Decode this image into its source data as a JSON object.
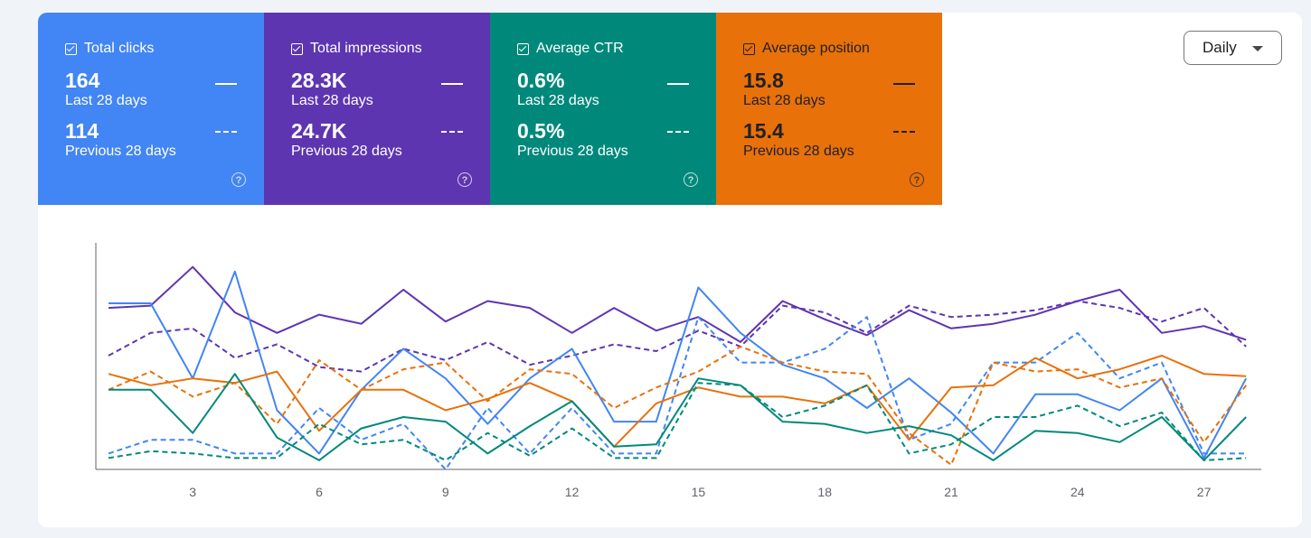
{
  "dropdown": {
    "value": "Daily"
  },
  "metrics": [
    {
      "key": "clicks",
      "label": "Total clicks",
      "current_value": "164",
      "current_period": "Last 28 days",
      "previous_value": "114",
      "previous_period": "Previous 28 days",
      "color": "#4285f4",
      "text_color": "#ffffff"
    },
    {
      "key": "impressions",
      "label": "Total impressions",
      "current_value": "28.3K",
      "current_period": "Last 28 days",
      "previous_value": "24.7K",
      "previous_period": "Previous 28 days",
      "color": "#5e35b1",
      "text_color": "#ffffff"
    },
    {
      "key": "ctr",
      "label": "Average CTR",
      "current_value": "0.6%",
      "current_period": "Last 28 days",
      "previous_value": "0.5%",
      "previous_period": "Previous 28 days",
      "color": "#00897b",
      "text_color": "#ffffff"
    },
    {
      "key": "position",
      "label": "Average position",
      "current_value": "15.8",
      "current_period": "Last 28 days",
      "previous_value": "15.4",
      "previous_period": "Previous 28 days",
      "color": "#e8710a",
      "text_color": "#202124"
    }
  ],
  "chart_data": {
    "type": "line",
    "x": [
      1,
      2,
      3,
      4,
      5,
      6,
      7,
      8,
      9,
      10,
      11,
      12,
      13,
      14,
      15,
      16,
      17,
      18,
      19,
      20,
      21,
      22,
      23,
      24,
      25,
      26,
      27,
      28
    ],
    "x_ticks": [
      "3",
      "6",
      "9",
      "12",
      "15",
      "18",
      "21",
      "24",
      "27"
    ],
    "x_tick_values": [
      3,
      6,
      9,
      12,
      15,
      18,
      21,
      24,
      27
    ],
    "ylim": [
      0,
      100
    ],
    "grid": false,
    "series": [
      {
        "metric": "impressions",
        "period": "current",
        "color": "#5e35b1",
        "dashed": false,
        "values": [
          71,
          72,
          89,
          69,
          60,
          68,
          64,
          79,
          65,
          74,
          71,
          60,
          71,
          61,
          67,
          56,
          74,
          66,
          59,
          70,
          62,
          64,
          68,
          74,
          79,
          60,
          63,
          57
        ]
      },
      {
        "metric": "impressions",
        "period": "previous",
        "color": "#5e35b1",
        "dashed": true,
        "values": [
          50,
          60,
          62,
          49,
          55,
          45,
          43,
          53,
          48,
          56,
          46,
          50,
          55,
          52,
          61,
          54,
          72,
          69,
          60,
          72,
          67,
          68,
          70,
          74,
          71,
          65,
          71,
          54
        ]
      },
      {
        "metric": "clicks",
        "period": "current",
        "color": "#4285f4",
        "dashed": false,
        "values": [
          73,
          73,
          40,
          87,
          26,
          7,
          35,
          53,
          40,
          20,
          40,
          53,
          21,
          21,
          80,
          60,
          46,
          40,
          27,
          40,
          25,
          7,
          33,
          33,
          26,
          40,
          5,
          40
        ]
      },
      {
        "metric": "clicks",
        "period": "previous",
        "color": "#4285f4",
        "dashed": true,
        "values": [
          7,
          13,
          13,
          7,
          7,
          27,
          13,
          20,
          0,
          27,
          7,
          27,
          7,
          7,
          67,
          47,
          47,
          53,
          67,
          13,
          20,
          47,
          47,
          60,
          40,
          47,
          7,
          7
        ]
      },
      {
        "metric": "position",
        "period": "current",
        "color": "#e8710a",
        "dashed": false,
        "values": [
          42,
          37,
          40,
          38,
          43,
          17,
          35,
          35,
          26,
          31,
          38,
          30,
          10,
          29,
          36,
          32,
          32,
          29,
          37,
          13,
          36,
          37,
          49,
          40,
          44,
          50,
          42,
          41
        ]
      },
      {
        "metric": "position",
        "period": "previous",
        "color": "#e8710a",
        "dashed": true,
        "values": [
          35,
          43,
          32,
          38,
          20,
          48,
          35,
          44,
          47,
          30,
          44,
          42,
          27,
          36,
          43,
          54,
          47,
          43,
          42,
          16,
          2,
          47,
          43,
          44,
          36,
          40,
          12,
          37
        ]
      },
      {
        "metric": "ctr",
        "period": "current",
        "color": "#00897b",
        "dashed": false,
        "values": [
          35,
          35,
          16,
          42,
          14,
          4,
          18,
          23,
          21,
          7,
          19,
          30,
          10,
          11,
          40,
          37,
          21,
          20,
          16,
          19,
          15,
          4,
          17,
          16,
          12,
          23,
          4,
          23
        ]
      },
      {
        "metric": "ctr",
        "period": "previous",
        "color": "#00897b",
        "dashed": true,
        "values": [
          5,
          8,
          7,
          5,
          5,
          20,
          11,
          13,
          4,
          16,
          6,
          18,
          5,
          5,
          38,
          37,
          23,
          28,
          37,
          7,
          11,
          23,
          23,
          28,
          19,
          25,
          4,
          5
        ]
      }
    ]
  }
}
